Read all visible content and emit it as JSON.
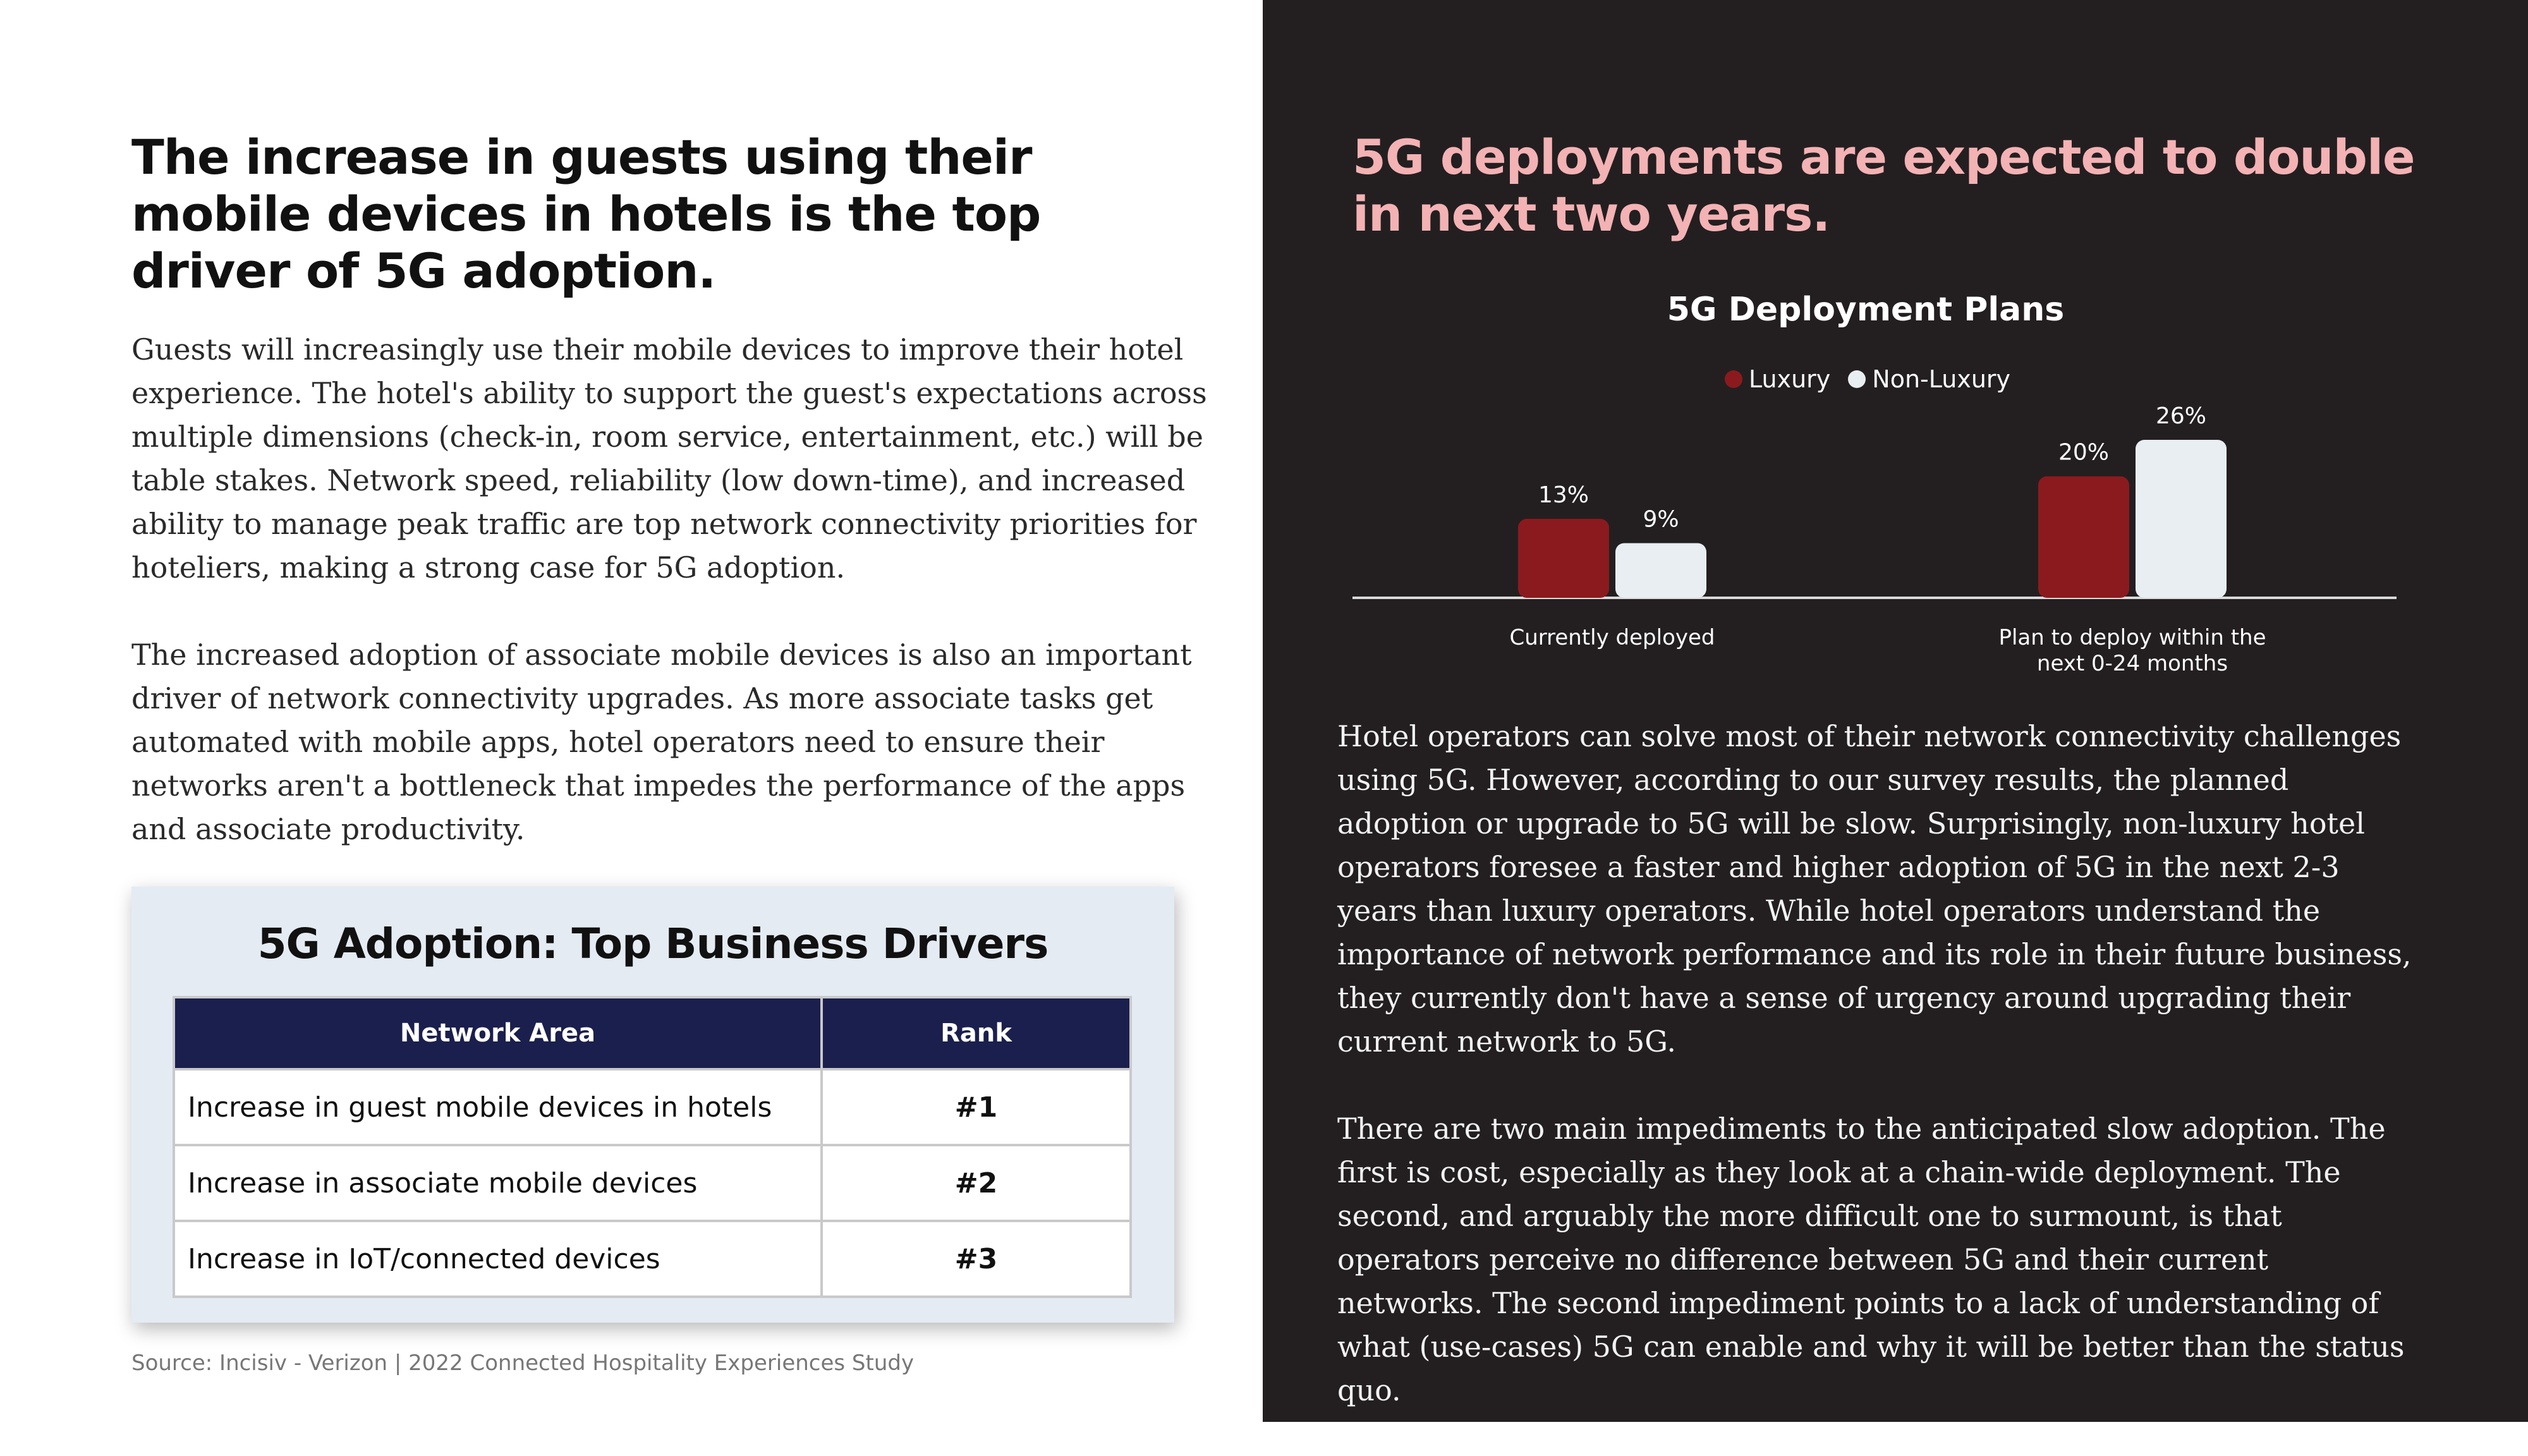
{
  "left": {
    "headline": "The increase in guests using their mobile devices in hotels is the top driver of 5G adoption.",
    "paragraphs": [
      "Guests will increasingly use their mobile devices to improve their hotel experience. The hotel's ability to support the guest's expectations across multiple dimensions (check-in, room service, entertainment, etc.) will be table stakes. Network speed, reliability (low down-time), and increased ability to manage peak traffic are top network connectivity priorities for hoteliers, making a strong case for 5G adoption.",
      "The increased adoption of associate mobile devices is also an important driver of network connectivity upgrades. As more associate tasks get automated with mobile apps, hotel operators need to ensure their networks aren't a bottleneck that impedes the performance of the apps and associate productivity."
    ],
    "table": {
      "title": "5G Adoption: Top Business Drivers",
      "headers": [
        "Network Area",
        "Rank"
      ],
      "rows": [
        [
          "Increase in guest mobile devices in hotels",
          "#1"
        ],
        [
          "Increase in associate mobile devices",
          "#2"
        ],
        [
          "Increase in IoT/connected devices",
          "#3"
        ]
      ]
    },
    "source": "Source: Incisiv - Verizon | 2022 Connected Hospitality Experiences Study"
  },
  "right": {
    "headline": "5G deployments are expected to double in next two years.",
    "paragraphs": [
      "Hotel operators can solve most of their network connectivity challenges using 5G. However, according to our survey results, the planned adoption or upgrade to 5G will be slow. Surprisingly, non-luxury hotel operators foresee a faster and higher adoption of 5G in the next 2-3 years than luxury operators. While hotel operators understand the importance of network performance and its role in their future business, they currently don't have a sense of urgency around upgrading their current network to 5G.",
      "There are two main impediments to the anticipated slow adoption. The first is cost, especially as they look at a chain-wide deployment. The second, and arguably the more difficult one to surmount, is that operators perceive no difference between 5G and their current networks. The second impediment points to a lack of understanding of what (use-cases) 5G can enable and why it will be better than the status quo."
    ]
  },
  "chart_data": {
    "type": "bar",
    "title": "5G Deployment Plans",
    "categories": [
      [
        "Currently deployed"
      ],
      [
        "Plan to deploy within the",
        "next 0-24 months"
      ]
    ],
    "series": [
      {
        "name": "Luxury",
        "values": [
          13,
          20
        ],
        "labels": [
          "13%",
          "20%"
        ],
        "color": "#8b1a1e"
      },
      {
        "name": "Non-Luxury",
        "values": [
          9,
          26
        ],
        "labels": [
          "9%",
          "26%"
        ],
        "color": "#e9eef2"
      }
    ],
    "legend": "top-center",
    "grid": false
  },
  "colors": {
    "dark_panel": "#231f20",
    "accent_pink": "#f3b2b4",
    "table_header": "#1b1f4d",
    "card_bg": "#e4ebf3"
  }
}
